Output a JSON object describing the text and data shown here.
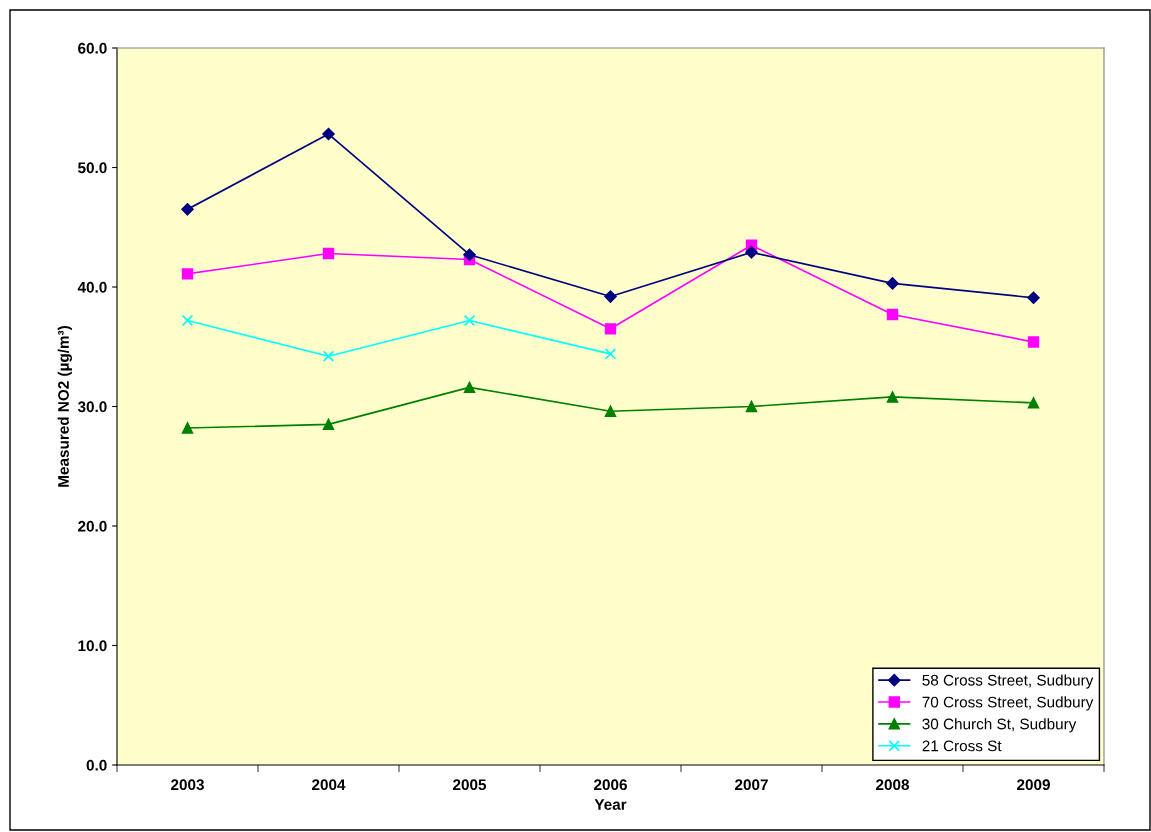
{
  "chart_data": {
    "type": "line",
    "xlabel": "Year",
    "ylabel": "Measured NO2 (µg/m³)",
    "categories": [
      "2003",
      "2004",
      "2005",
      "2006",
      "2007",
      "2008",
      "2009"
    ],
    "series": [
      {
        "name": "58 Cross Street, Sudbury",
        "color": "#000080",
        "marker": "diamond",
        "values": [
          46.5,
          52.8,
          42.7,
          39.2,
          42.9,
          40.3,
          39.1
        ]
      },
      {
        "name": "70 Cross Street, Sudbury",
        "color": "#ff00ff",
        "marker": "square",
        "values": [
          41.1,
          42.8,
          42.3,
          36.5,
          43.5,
          37.7,
          35.4
        ]
      },
      {
        "name": "30 Church St, Sudbury",
        "color": "#008000",
        "marker": "triangle",
        "values": [
          28.2,
          28.5,
          31.6,
          29.6,
          30.0,
          30.8,
          30.3
        ]
      },
      {
        "name": "21 Cross St",
        "color": "#00ffff",
        "marker": "cross",
        "values": [
          37.2,
          34.2,
          37.2,
          34.4,
          null,
          null,
          null
        ]
      }
    ],
    "ylim": [
      0,
      60
    ],
    "yticks": [
      {
        "value": 0,
        "label": "0.0"
      },
      {
        "value": 10,
        "label": "10.0"
      },
      {
        "value": 20,
        "label": "20.0"
      },
      {
        "value": 30,
        "label": "30.0"
      },
      {
        "value": 40,
        "label": "40.0"
      },
      {
        "value": 50,
        "label": "50.0"
      },
      {
        "value": 60,
        "label": "60.0"
      }
    ],
    "grid": false,
    "legend": "bottom right",
    "line_style": "solid"
  }
}
